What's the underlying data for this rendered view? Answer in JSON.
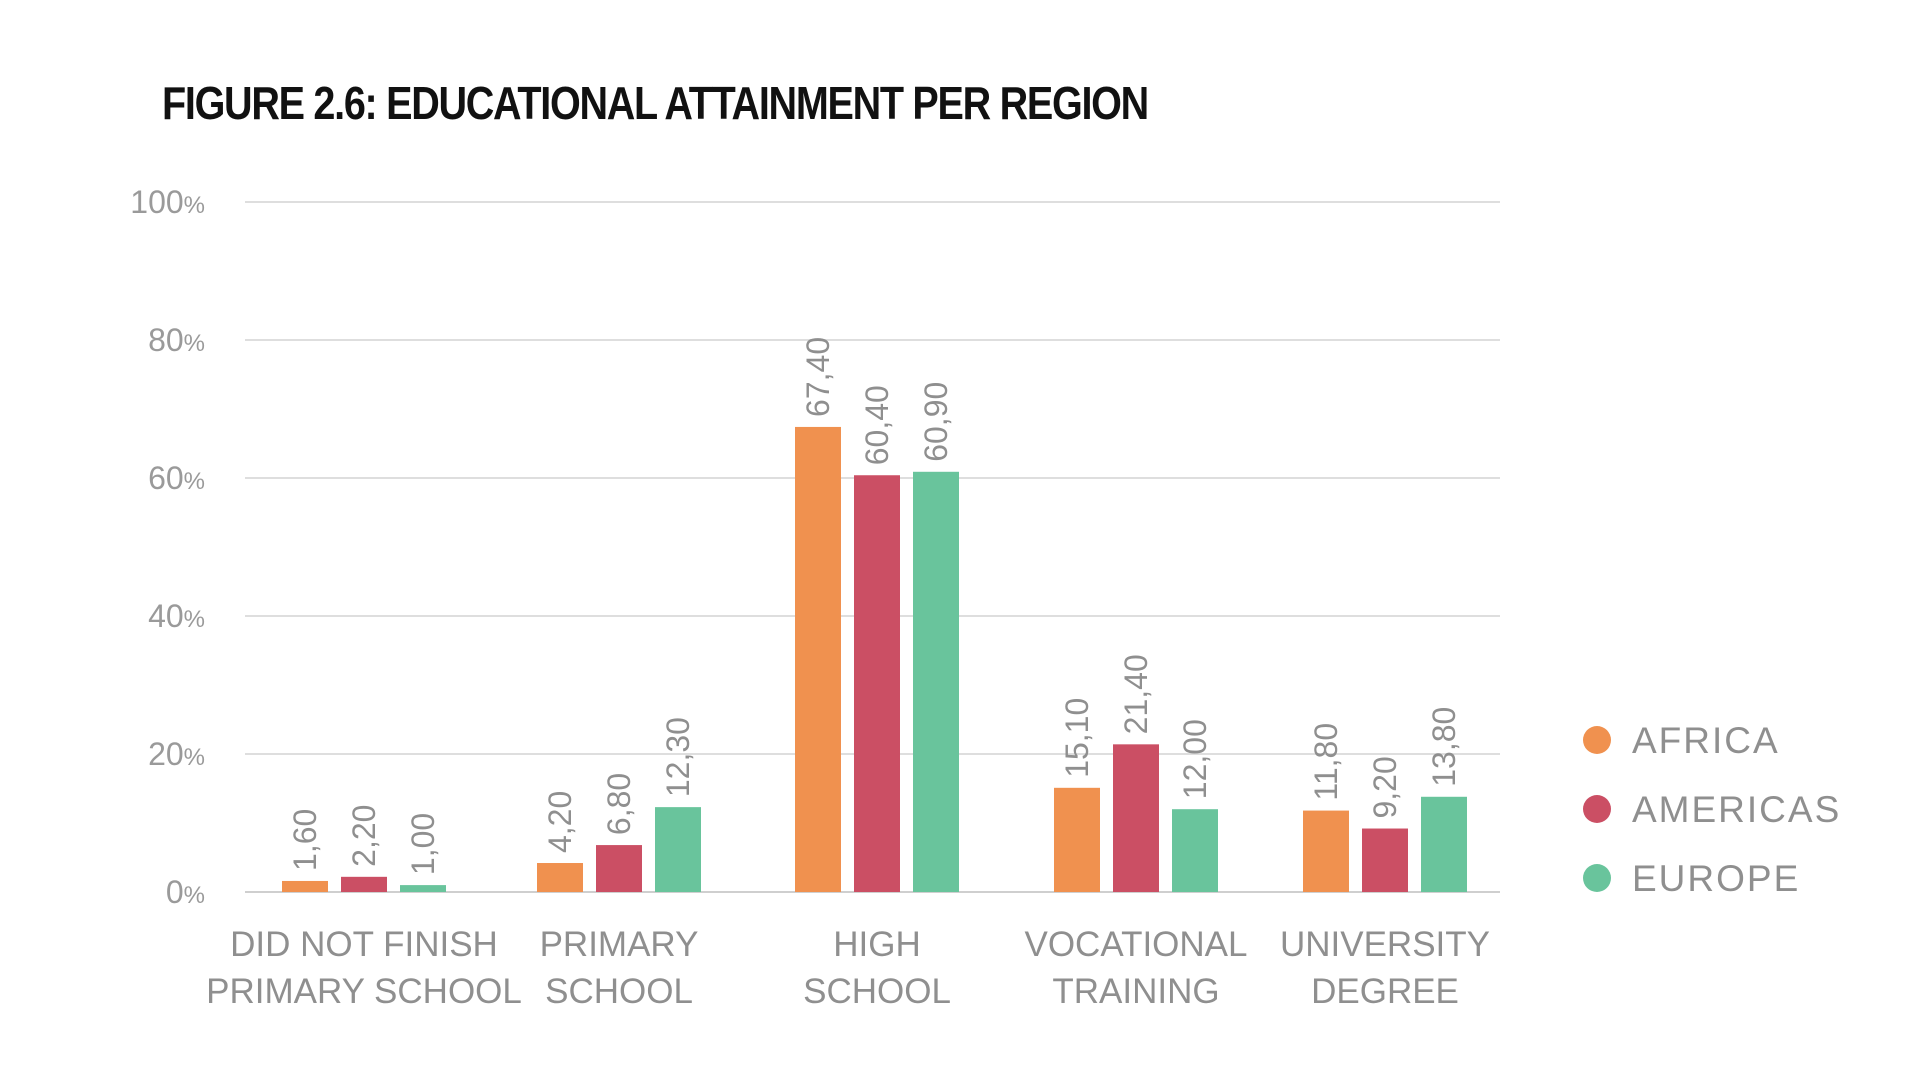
{
  "title": "FIGURE 2.6: EDUCATIONAL ATTAINMENT PER REGION",
  "colors": {
    "AFRICA": "#F0914F",
    "AMERICAS": "#CB4F64",
    "EUROPE": "#69C49C"
  },
  "chart_data": {
    "type": "bar",
    "title": "FIGURE 2.6: EDUCATIONAL ATTAINMENT PER REGION",
    "xlabel": "",
    "ylabel": "",
    "ylim": [
      0,
      100
    ],
    "yticks": [
      0,
      20,
      40,
      60,
      80,
      100
    ],
    "ytick_labels": [
      "0%",
      "20%",
      "40%",
      "60%",
      "80%",
      "100%"
    ],
    "grid": true,
    "legend": "right",
    "categories": [
      [
        "DID NOT FINISH",
        "PRIMARY SCHOOL"
      ],
      [
        "PRIMARY",
        "SCHOOL"
      ],
      [
        "HIGH",
        "SCHOOL"
      ],
      [
        "VOCATIONAL",
        "TRAINING"
      ],
      [
        "UNIVERSITY",
        "DEGREE"
      ]
    ],
    "series": [
      {
        "name": "AFRICA",
        "values": [
          1.6,
          4.2,
          67.4,
          15.1,
          11.8
        ],
        "labels": [
          "1,60",
          "4,20",
          "67,40",
          "15,10",
          "11,80"
        ]
      },
      {
        "name": "AMERICAS",
        "values": [
          2.2,
          6.8,
          60.4,
          21.4,
          9.2
        ],
        "labels": [
          "2,20",
          "6,80",
          "60,40",
          "21,40",
          "9,20"
        ]
      },
      {
        "name": "EUROPE",
        "values": [
          1.0,
          12.3,
          60.9,
          12.0,
          13.8
        ],
        "labels": [
          "1,00",
          "12,30",
          "60,90",
          "12,00",
          "13,80"
        ]
      }
    ]
  }
}
